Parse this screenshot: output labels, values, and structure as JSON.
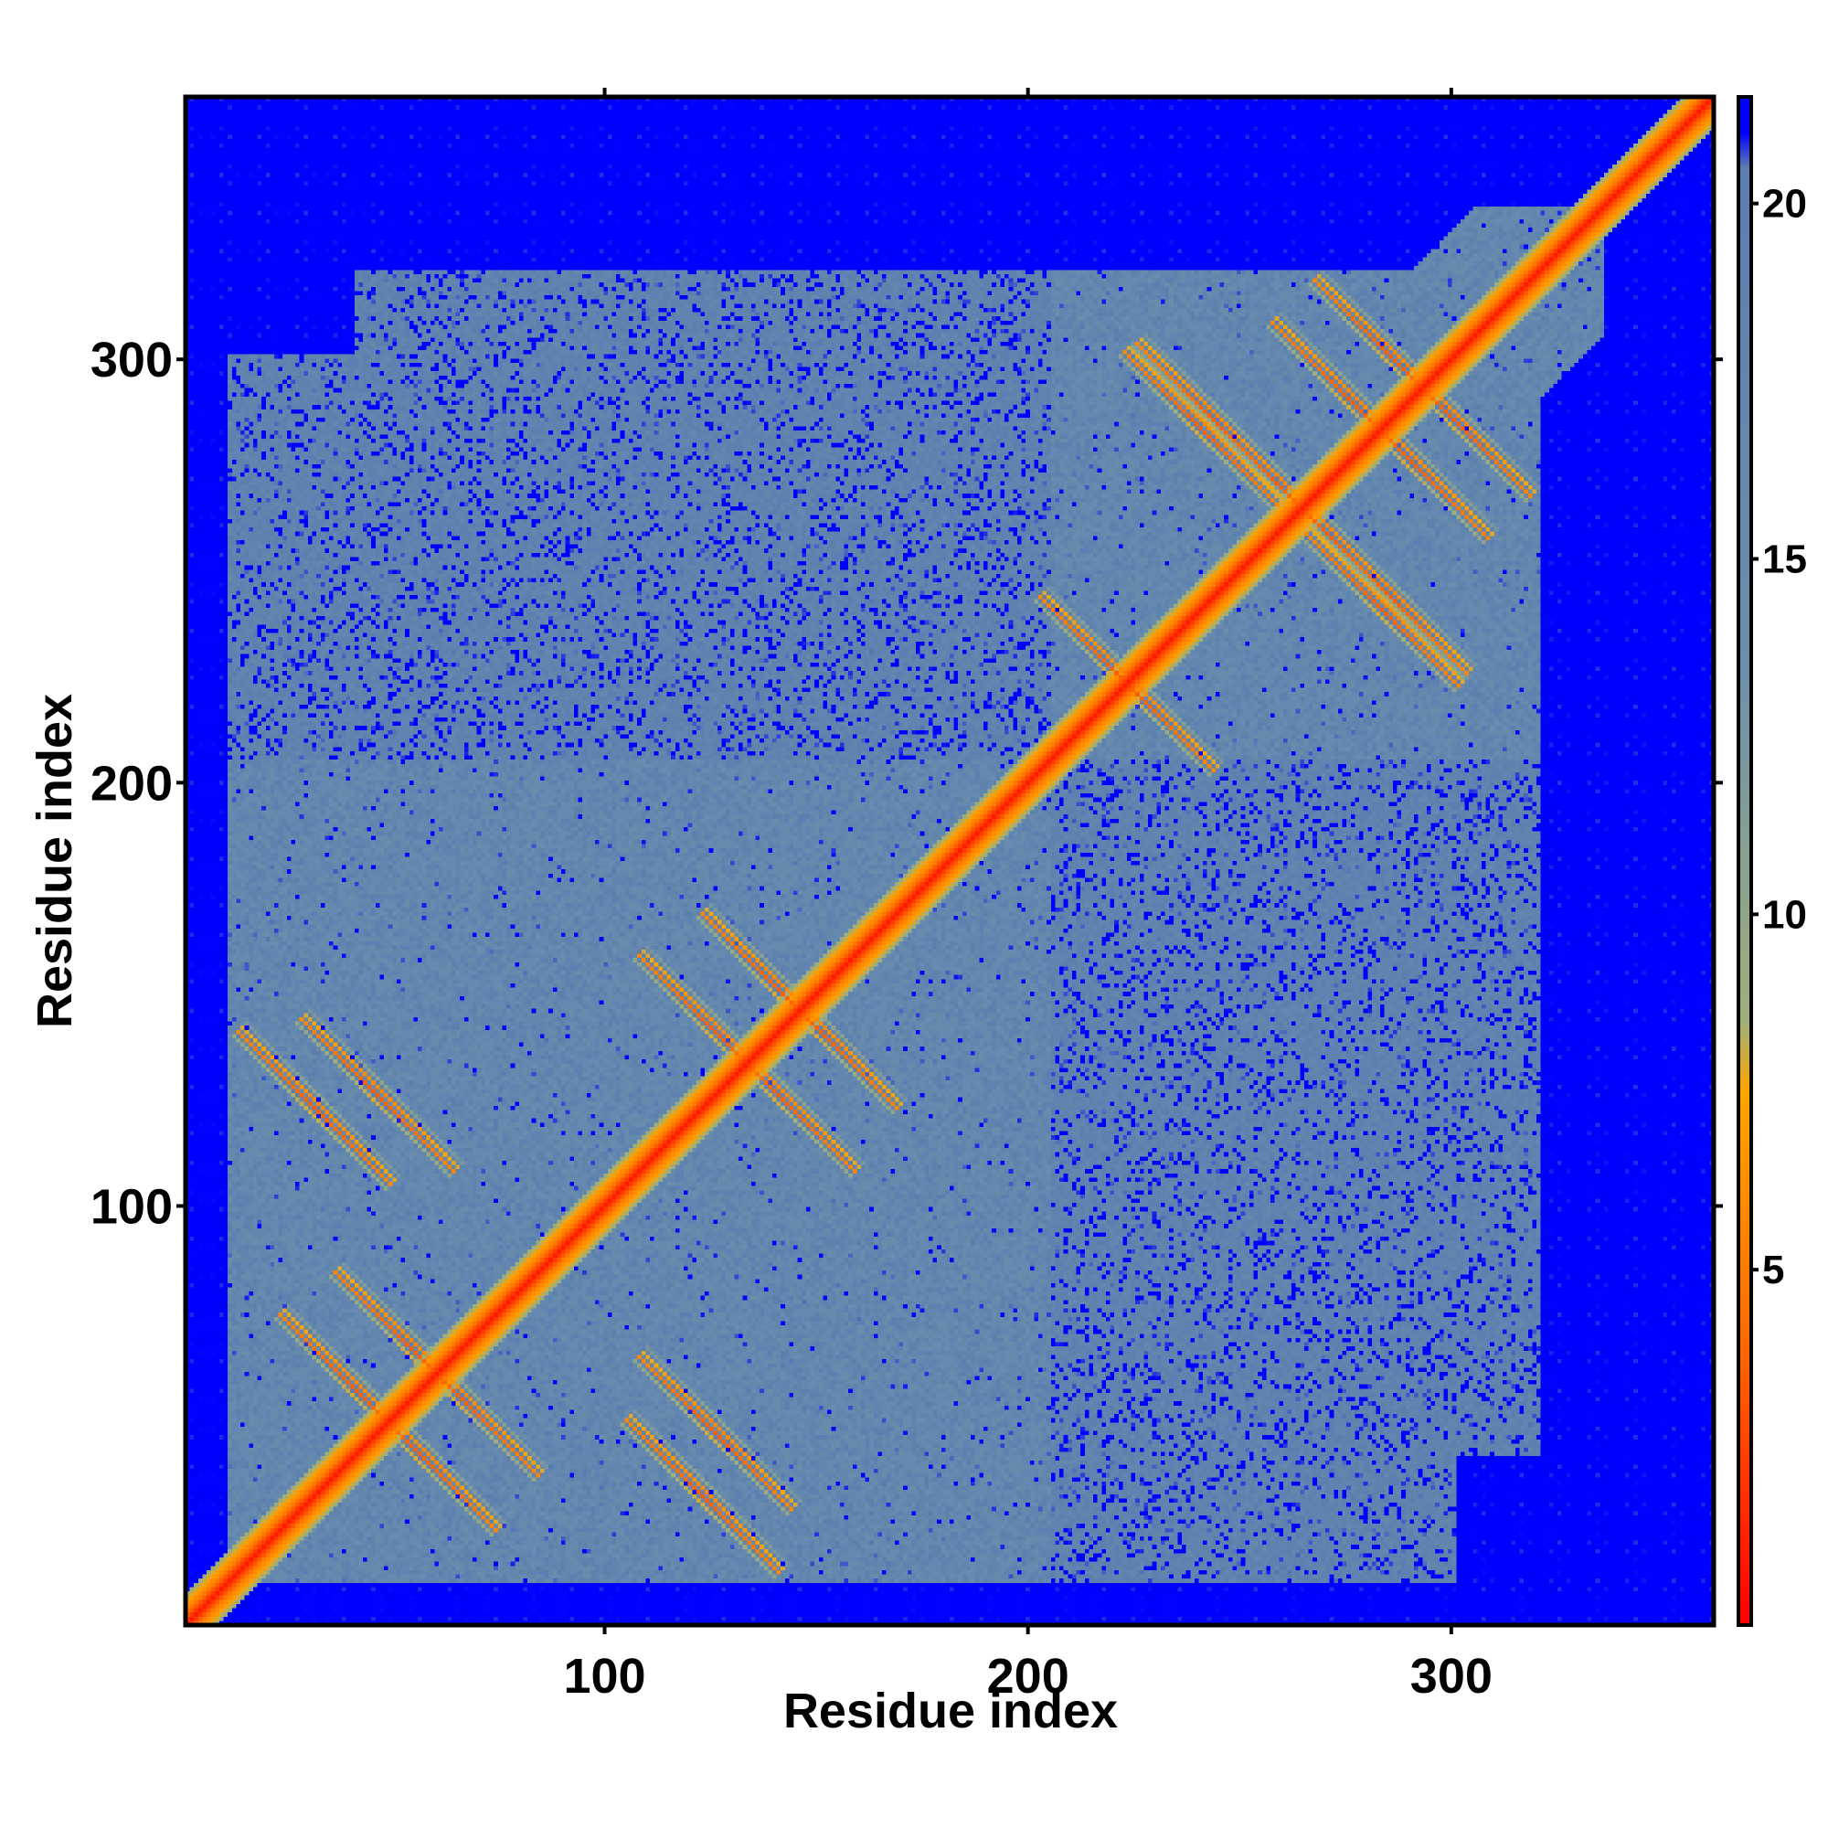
{
  "chart_data": {
    "type": "heatmap",
    "title": "",
    "xlabel": "Residue index",
    "ylabel": "Residue index",
    "xlim": [
      1,
      362
    ],
    "ylim": [
      1,
      362
    ],
    "x_ticks": [
      100,
      200,
      300
    ],
    "y_ticks": [
      100,
      200,
      300
    ],
    "colorbar": {
      "range": [
        0,
        21.5
      ],
      "ticks": [
        5,
        10,
        15,
        20
      ],
      "stops": [
        {
          "value": 0,
          "color": "#ff0000"
        },
        {
          "value": 4,
          "color": "#ff6a00"
        },
        {
          "value": 7.5,
          "color": "#ffa500"
        },
        {
          "value": 8.5,
          "color": "#9fb07a"
        },
        {
          "value": 13.5,
          "color": "#6c8eac"
        },
        {
          "value": 20.5,
          "color": "#5a7fb0"
        },
        {
          "value": 21,
          "color": "#0000ff"
        }
      ]
    },
    "matrix_description": {
      "n_residues": 362,
      "background_value": 21.5,
      "diagonal_value": 0,
      "helical_bands": [
        [
          12,
          32
        ],
        [
          36,
          58
        ],
        [
          58,
          80
        ],
        [
          112,
          132
        ],
        [
          132,
          160
        ],
        [
          160,
          196
        ],
        [
          205,
          230
        ],
        [
          232,
          262
        ],
        [
          262,
          300
        ],
        [
          300,
          362
        ]
      ],
      "antiparallel_contacts": [
        {
          "center": [
            30,
            122
          ],
          "value": 3.5
        },
        {
          "center": [
            40,
            55
          ],
          "value": 3.5
        },
        {
          "center": [
            53,
            65
          ],
          "value": 3.5
        },
        {
          "center": [
            125,
            45
          ],
          "value": 3.5
        },
        {
          "center": [
            125,
            140
          ],
          "value": 3.5
        },
        {
          "center": [
            140,
            150
          ],
          "value": 3.5
        },
        {
          "center": [
            220,
            225
          ],
          "value": 3.5
        },
        {
          "center": [
            243,
            285
          ],
          "value": 3.5
        },
        {
          "center": [
            258,
            270
          ],
          "value": 3.5
        },
        {
          "center": [
            275,
            290
          ],
          "value": 3.5
        },
        {
          "center": [
            285,
            300
          ],
          "value": 3.5
        },
        {
          "center": [
            283,
            240
          ],
          "value": 3.5
        }
      ]
    }
  }
}
